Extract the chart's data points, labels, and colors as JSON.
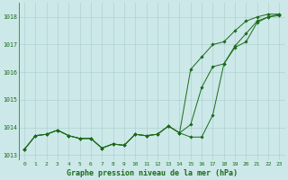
{
  "title": "Graphe pression niveau de la mer (hPa)",
  "bg_color": "#cce8e8",
  "grid_color": "#aacccc",
  "line_color": "#1a6b1a",
  "xlim": [
    -0.5,
    23.5
  ],
  "ylim": [
    1012.8,
    1018.5
  ],
  "yticks": [
    1013,
    1014,
    1015,
    1016,
    1017,
    1018
  ],
  "xticks": [
    0,
    1,
    2,
    3,
    4,
    5,
    6,
    7,
    8,
    9,
    10,
    11,
    12,
    13,
    14,
    15,
    16,
    17,
    18,
    19,
    20,
    21,
    22,
    23
  ],
  "series1": [
    1013.2,
    1013.7,
    1013.75,
    1013.9,
    1013.7,
    1013.6,
    1013.6,
    1013.25,
    1013.4,
    1013.35,
    1013.75,
    1013.7,
    1013.75,
    1014.05,
    1013.8,
    1013.65,
    1013.65,
    1014.45,
    1016.3,
    1016.9,
    1017.1,
    1017.8,
    1018.0,
    1018.05
  ],
  "series2": [
    1013.2,
    1013.7,
    1013.75,
    1013.9,
    1013.7,
    1013.6,
    1013.6,
    1013.25,
    1013.4,
    1013.35,
    1013.75,
    1013.7,
    1013.75,
    1014.05,
    1013.8,
    1014.1,
    1015.45,
    1016.2,
    1016.3,
    1016.95,
    1017.4,
    1017.85,
    1018.0,
    1018.1
  ],
  "series3": [
    1013.2,
    1013.7,
    1013.75,
    1013.9,
    1013.7,
    1013.6,
    1013.6,
    1013.25,
    1013.4,
    1013.35,
    1013.75,
    1013.7,
    1013.75,
    1014.05,
    1013.8,
    1016.1,
    1016.55,
    1017.0,
    1017.1,
    1017.5,
    1017.85,
    1018.0,
    1018.1,
    1018.1
  ],
  "title_fontsize": 6,
  "tick_fontsize": 4.5,
  "linewidth": 0.7,
  "markersize": 1.8
}
